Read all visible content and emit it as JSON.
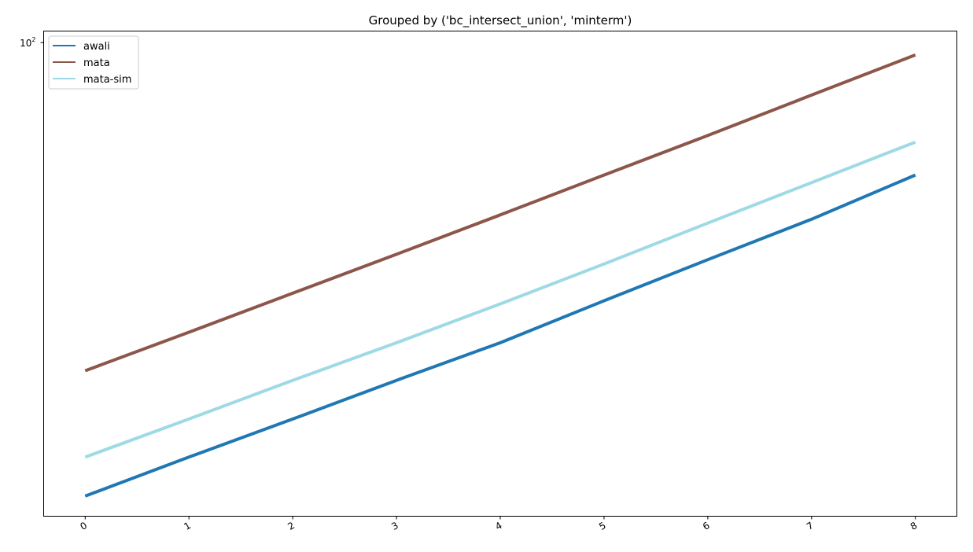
{
  "chart_data": {
    "type": "line",
    "title": "Grouped by ('bc_intersect_union', 'minterm')",
    "xlabel": "",
    "ylabel": "",
    "yscale": "log",
    "x": [
      0,
      1,
      2,
      3,
      4,
      5,
      6,
      7,
      8
    ],
    "xticks": [
      "0",
      "1",
      "2",
      "3",
      "4",
      "5",
      "6",
      "7",
      "8"
    ],
    "ytick_label": {
      "base": "10",
      "exponent": "2",
      "value": 100
    },
    "ylim": [
      6.22,
      107.0
    ],
    "xlim": [
      -0.4,
      8.4
    ],
    "grid": false,
    "legend_position": "upper left",
    "series": [
      {
        "name": "awali",
        "color": "#1f77b4",
        "values": [
          7.0,
          8.8,
          11.0,
          13.8,
          17.2,
          22.0,
          28.0,
          35.5,
          46.0
        ]
      },
      {
        "name": "mata",
        "color": "#8c564b",
        "values": [
          14.6,
          18.3,
          23.0,
          28.9,
          36.4,
          46.0,
          58.0,
          73.5,
          93.0
        ]
      },
      {
        "name": "mata-sim",
        "color": "#9edae5",
        "values": [
          8.8,
          11.0,
          13.8,
          17.2,
          21.6,
          27.3,
          34.7,
          44.0,
          55.8
        ]
      }
    ]
  }
}
